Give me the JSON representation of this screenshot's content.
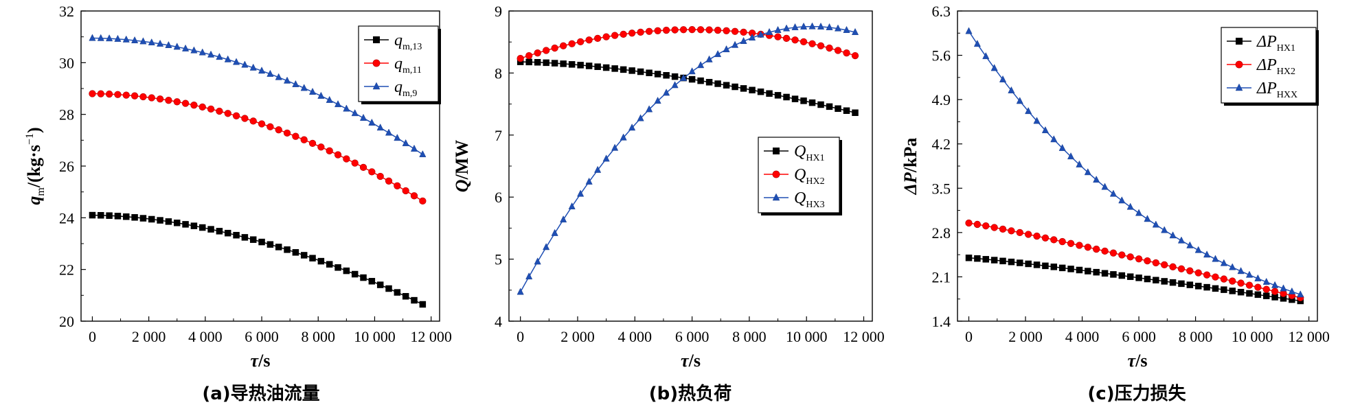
{
  "chart_data": [
    {
      "type": "line",
      "caption": "(a)导热油流量",
      "xlabel": "τ/s",
      "ylabel": "q m /(kg·s⁻¹)",
      "ylabel_parts": {
        "main": "q",
        "sub": "m",
        "rest": "/(kg·s",
        "sup": "−1",
        "end": ")"
      },
      "xlim": [
        -400,
        12300
      ],
      "ylim": [
        20,
        32
      ],
      "xticks": [
        0,
        2000,
        4000,
        6000,
        8000,
        10000,
        12000
      ],
      "xtick_labels": [
        "0",
        "2 000",
        "4 000",
        "6 000",
        "8 000",
        "10 000",
        "12 000"
      ],
      "yticks": [
        20,
        22,
        24,
        26,
        28,
        30,
        32
      ],
      "ytick_labels": [
        "20",
        "22",
        "24",
        "26",
        "28",
        "30",
        "32"
      ],
      "legend_position": "top-right",
      "x": {
        "start": 0,
        "step": 300,
        "count": 40
      },
      "series": [
        {
          "name": "q m,13",
          "name_main": "q",
          "name_sub": "m,13",
          "marker": "square",
          "color": "#000000",
          "start": 24.1,
          "end": 20.65,
          "curvature": 1.8
        },
        {
          "name": "q m,11",
          "name_main": "q",
          "name_sub": "m,11",
          "marker": "circle",
          "color": "#ff0000",
          "start": 28.8,
          "end": 24.65,
          "curvature": 1.9
        },
        {
          "name": "q m,9",
          "name_main": "q",
          "name_sub": "m,9",
          "marker": "triangle",
          "color": "#1f4fb4",
          "start": 30.95,
          "end": 26.45,
          "curvature": 1.9
        }
      ]
    },
    {
      "type": "line",
      "caption": "(b)热负荷",
      "xlabel": "τ/s",
      "ylabel": "Q/MW",
      "ylabel_parts": {
        "main": "Q",
        "sub": "",
        "rest": "/MW",
        "sup": "",
        "end": ""
      },
      "xlim": [
        -400,
        12300
      ],
      "ylim": [
        4,
        9
      ],
      "xticks": [
        0,
        2000,
        4000,
        6000,
        8000,
        10000,
        12000
      ],
      "xtick_labels": [
        "0",
        "2 000",
        "4 000",
        "6 000",
        "8 000",
        "10 000",
        "12 000"
      ],
      "yticks": [
        4,
        5,
        6,
        7,
        8,
        9
      ],
      "ytick_labels": [
        "4",
        "5",
        "6",
        "7",
        "8",
        "9"
      ],
      "legend_position": "center-right",
      "x": {
        "start": 0,
        "step": 300,
        "count": 40
      },
      "series": [
        {
          "name": "Q HX1",
          "name_main": "Q",
          "name_sub": "HX1",
          "marker": "square",
          "color": "#000000",
          "start": 8.18,
          "end": 7.36,
          "curvature": 1.6
        },
        {
          "name": "Q HX2",
          "name_main": "Q",
          "name_sub": "HX2",
          "marker": "circle",
          "color": "#ff0000",
          "quad": {
            "peak_x": 6000,
            "peak_y": 8.7,
            "end": 8.28
          }
        },
        {
          "name": "Q HX3",
          "name_main": "Q",
          "name_sub": "HX3",
          "marker": "triangle",
          "color": "#1f4fb4",
          "quad": {
            "peak_x": 10200,
            "peak_y": 8.75,
            "start": 4.47
          }
        }
      ]
    },
    {
      "type": "line",
      "caption": "(c)压力损失",
      "xlabel": "τ/s",
      "ylabel": "ΔP/kPa",
      "ylabel_parts": {
        "main": "ΔP",
        "sub": "",
        "rest": "/kPa",
        "sup": "",
        "end": ""
      },
      "xlim": [
        -400,
        12300
      ],
      "ylim": [
        1.4,
        6.3
      ],
      "xticks": [
        0,
        2000,
        4000,
        6000,
        8000,
        10000,
        12000
      ],
      "xtick_labels": [
        "0",
        "2 000",
        "4 000",
        "6 000",
        "8 000",
        "10 000",
        "12 000"
      ],
      "yticks": [
        1.4,
        2.1,
        2.8,
        3.5,
        4.2,
        4.9,
        5.6,
        6.3
      ],
      "ytick_labels": [
        "1.4",
        "2.1",
        "2.8",
        "3.5",
        "4.2",
        "4.9",
        "5.6",
        "6.3"
      ],
      "legend_position": "top-right",
      "x": {
        "start": 0,
        "step": 300,
        "count": 40
      },
      "series": [
        {
          "name": "ΔP HX1",
          "name_main": "ΔP",
          "name_sub": "HX1",
          "marker": "square",
          "color": "#000000",
          "start": 2.4,
          "end": 1.72,
          "curvature": 1.15
        },
        {
          "name": "ΔP HX2",
          "name_main": "ΔP",
          "name_sub": "HX2",
          "marker": "circle",
          "color": "#ff0000",
          "start": 2.95,
          "end": 1.77,
          "curvature": 1.1
        },
        {
          "name": "ΔP HXX",
          "name_main": "ΔP",
          "name_sub": "HXX",
          "marker": "triangle",
          "color": "#1f4fb4",
          "exp": {
            "start": 5.98,
            "end": 1.82,
            "k": 1.5
          }
        }
      ]
    }
  ]
}
